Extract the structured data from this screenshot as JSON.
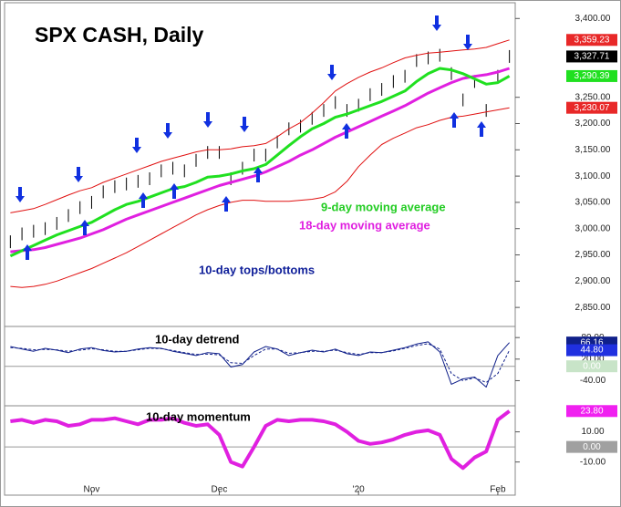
{
  "chart_data": [
    {
      "type": "line",
      "title": "SPX CASH, Daily",
      "categories": [
        null,
        null,
        null,
        null,
        null,
        null,
        null,
        "Nov",
        null,
        null,
        null,
        null,
        null,
        null,
        null,
        null,
        null,
        null,
        "Dec",
        null,
        null,
        null,
        null,
        null,
        null,
        null,
        null,
        null,
        null,
        null,
        "'20",
        null,
        null,
        null,
        null,
        null,
        null,
        null,
        null,
        null,
        null,
        null,
        "Feb",
        null
      ],
      "ylim": [
        2819,
        3430
      ],
      "yticks": [
        {
          "value": 3400,
          "label": "3,400.00"
        },
        {
          "value": 3250,
          "label": "3,250.00"
        },
        {
          "value": 3200,
          "label": "3,200.00"
        },
        {
          "value": 3150,
          "label": "3,150.00"
        },
        {
          "value": 3100,
          "label": "3,100.00"
        },
        {
          "value": 3050,
          "label": "3,050.00"
        },
        {
          "value": 3000,
          "label": "3,000.00"
        },
        {
          "value": 2950,
          "label": "2,950.00"
        },
        {
          "value": 2900,
          "label": "2,900.00"
        },
        {
          "value": 2850,
          "label": "2,850.00"
        }
      ],
      "series": [
        {
          "style": "bars",
          "color": "#000000",
          "values": [
            2975,
            2990,
            2995,
            3000,
            3010,
            3025,
            3040,
            3050,
            3070,
            3080,
            3085,
            3090,
            3095,
            3110,
            3115,
            3110,
            3130,
            3145,
            3145,
            3095,
            3115,
            3140,
            3140,
            3165,
            3190,
            3195,
            3210,
            3225,
            3240,
            3225,
            3235,
            3255,
            3265,
            3280,
            3290,
            3320,
            3325,
            3330,
            3295,
            3245,
            3280,
            3225,
            3290,
            3327.71
          ]
        },
        {
          "color": "#e01010",
          "values": [
            3030,
            3034,
            3038,
            3046,
            3055,
            3064,
            3072,
            3078,
            3088,
            3096,
            3104,
            3112,
            3120,
            3128,
            3134,
            3140,
            3146,
            3150,
            3150,
            3152,
            3156,
            3158,
            3162,
            3175,
            3190,
            3202,
            3220,
            3240,
            3262,
            3276,
            3288,
            3298,
            3306,
            3316,
            3325,
            3330,
            3334,
            3336,
            3338,
            3340,
            3342,
            3345,
            3352,
            3359.23
          ]
        },
        {
          "color": "#e01010",
          "values": [
            2890,
            2888,
            2890,
            2894,
            2900,
            2908,
            2916,
            2924,
            2934,
            2944,
            2954,
            2966,
            2978,
            2990,
            3002,
            3014,
            3026,
            3036,
            3044,
            3050,
            3054,
            3054,
            3052,
            3052,
            3052,
            3054,
            3056,
            3060,
            3070,
            3090,
            3118,
            3140,
            3160,
            3172,
            3182,
            3192,
            3198,
            3206,
            3212,
            3214,
            3218,
            3222,
            3226,
            3230.07
          ]
        },
        {
          "name": "18-day moving average",
          "color": "#e020e0",
          "width": 3,
          "values": [
            2956,
            2958,
            2960,
            2964,
            2970,
            2976,
            2982,
            2990,
            2998,
            3008,
            3018,
            3026,
            3034,
            3042,
            3050,
            3058,
            3066,
            3074,
            3082,
            3088,
            3094,
            3100,
            3108,
            3118,
            3128,
            3140,
            3150,
            3162,
            3174,
            3184,
            3194,
            3204,
            3214,
            3224,
            3234,
            3246,
            3258,
            3268,
            3278,
            3286,
            3290,
            3293,
            3298,
            3305
          ]
        },
        {
          "name": "9-day moving average",
          "color": "#20e020",
          "width": 3,
          "values": [
            2948,
            2958,
            2968,
            2978,
            2988,
            2996,
            3004,
            3012,
            3024,
            3036,
            3046,
            3052,
            3060,
            3068,
            3076,
            3080,
            3088,
            3098,
            3100,
            3104,
            3110,
            3114,
            3122,
            3140,
            3158,
            3175,
            3190,
            3200,
            3212,
            3218,
            3226,
            3234,
            3242,
            3252,
            3262,
            3280,
            3295,
            3305,
            3302,
            3295,
            3285,
            3275,
            3278,
            3290.39
          ]
        }
      ],
      "tags": [
        {
          "value": 3359.23,
          "label": "3,359.23",
          "color": "#e82828",
          "text": "#ffffff"
        },
        {
          "value": 3327.71,
          "label": "3,327.71",
          "color": "#000000",
          "text": "#ffffff"
        },
        {
          "value": 3290.39,
          "label": "3,290.39",
          "color": "#20e020",
          "text": "#ffffff"
        },
        {
          "value": 3230.07,
          "label": "3,230.07",
          "color": "#e82828",
          "text": "#ffffff"
        }
      ]
    },
    {
      "type": "line",
      "title": "10-day detrend",
      "ylim": [
        -110,
        111
      ],
      "yticks": [
        {
          "value": 80,
          "label": "80.00"
        },
        {
          "value": 20,
          "label": "20.00"
        },
        {
          "value": -40,
          "label": "-40.00"
        }
      ],
      "hline": 0,
      "series": [
        {
          "color": "#10208a",
          "values": [
            55,
            48,
            42,
            50,
            45,
            38,
            48,
            52,
            44,
            40,
            42,
            48,
            52,
            50,
            42,
            36,
            30,
            38,
            35,
            -2,
            5,
            40,
            55,
            48,
            30,
            38,
            45,
            40,
            48,
            35,
            30,
            40,
            38,
            45,
            52,
            62,
            68,
            40,
            -50,
            -35,
            -30,
            -58,
            30,
            66.16
          ]
        },
        {
          "color": "#10208a",
          "dash": true,
          "values": [
            52,
            50,
            46,
            47,
            46,
            42,
            45,
            49,
            46,
            42,
            42,
            46,
            50,
            49,
            44,
            38,
            33,
            34,
            32,
            10,
            8,
            30,
            48,
            48,
            36,
            38,
            42,
            42,
            45,
            38,
            33,
            38,
            38,
            43,
            50,
            58,
            63,
            48,
            -20,
            -40,
            -32,
            -45,
            -20,
            44.8
          ]
        }
      ],
      "tags": [
        {
          "value": 66.16,
          "label": "66.16",
          "color": "#10208a",
          "text": "#ffffff"
        },
        {
          "value": 44.8,
          "label": "44.80",
          "color": "#2030e0",
          "text": "#ffffff"
        },
        {
          "value": 0,
          "label": "0.00",
          "color": "#c8e4c8",
          "text": "#ffffff"
        }
      ]
    },
    {
      "type": "line",
      "title": "10-day momentum",
      "ylim": [
        -32,
        27.3
      ],
      "yticks": [
        {
          "value": 10,
          "label": "10.00"
        },
        {
          "value": -10,
          "label": "-10.00"
        }
      ],
      "hline": 0,
      "series": [
        {
          "color": "#e020e0",
          "width": 4,
          "values": [
            17,
            18,
            16,
            18,
            17,
            14,
            15,
            18,
            18,
            19,
            17,
            15,
            18,
            18,
            19,
            16,
            14,
            15,
            8,
            -10,
            -13,
            0,
            14,
            18,
            17,
            18,
            18,
            17,
            15,
            10,
            4,
            2,
            3,
            5,
            8,
            10,
            11,
            8,
            -8,
            -14,
            -7,
            -3,
            18,
            23.8
          ]
        }
      ],
      "tags": [
        {
          "value": 23.8,
          "label": "23.80",
          "color": "#f020f0",
          "text": "#ffffff"
        },
        {
          "value": 0,
          "label": "0.00",
          "color": "#a0a0a0",
          "text": "#ffffff"
        }
      ]
    }
  ]
}
